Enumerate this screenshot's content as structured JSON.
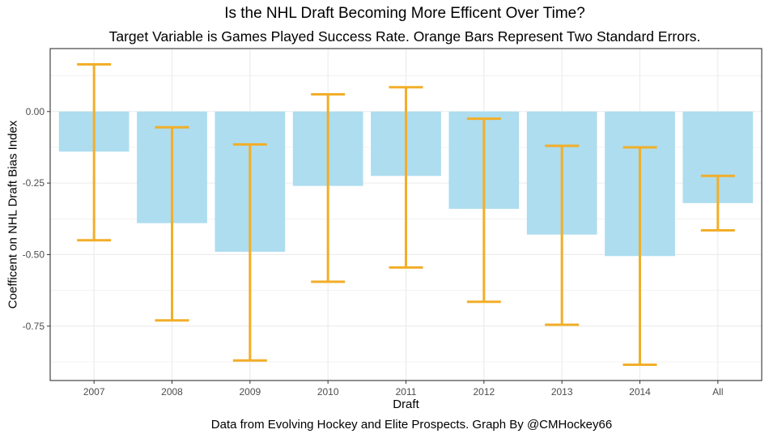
{
  "chart_data": {
    "type": "bar",
    "title": "Is the NHL Draft Becoming More Efficent Over Time?",
    "subtitle": "Target Variable is Games Played Success Rate. Orange Bars Represent Two Standard Errors.",
    "xlabel": "Draft",
    "ylabel": "Coefficent on NHL Draft Bias Index",
    "caption": "Data from Evolving Hockey and Elite Prospects. Graph By @CMHockey66",
    "categories": [
      "2007",
      "2008",
      "2009",
      "2010",
      "2011",
      "2012",
      "2013",
      "2014",
      "All"
    ],
    "values": [
      -0.14,
      -0.39,
      -0.49,
      -0.26,
      -0.225,
      -0.34,
      -0.43,
      -0.505,
      -0.32
    ],
    "error_upper": [
      0.165,
      -0.055,
      -0.115,
      0.06,
      0.085,
      -0.025,
      -0.12,
      -0.125,
      -0.225
    ],
    "error_lower": [
      -0.45,
      -0.73,
      -0.87,
      -0.595,
      -0.545,
      -0.665,
      -0.745,
      -0.885,
      -0.415
    ],
    "yticks": [
      0.0,
      -0.25,
      -0.5,
      -0.75
    ],
    "ytick_labels": [
      "0.00",
      "-0.25",
      "-0.50",
      "-0.75"
    ],
    "ylim": [
      -0.94,
      0.22
    ],
    "grid": true,
    "legend": "none",
    "colors": {
      "bar": "#ADDDEF",
      "error": "#F2AE29",
      "grid": "#EBEBEB",
      "axis": "#333333"
    }
  }
}
